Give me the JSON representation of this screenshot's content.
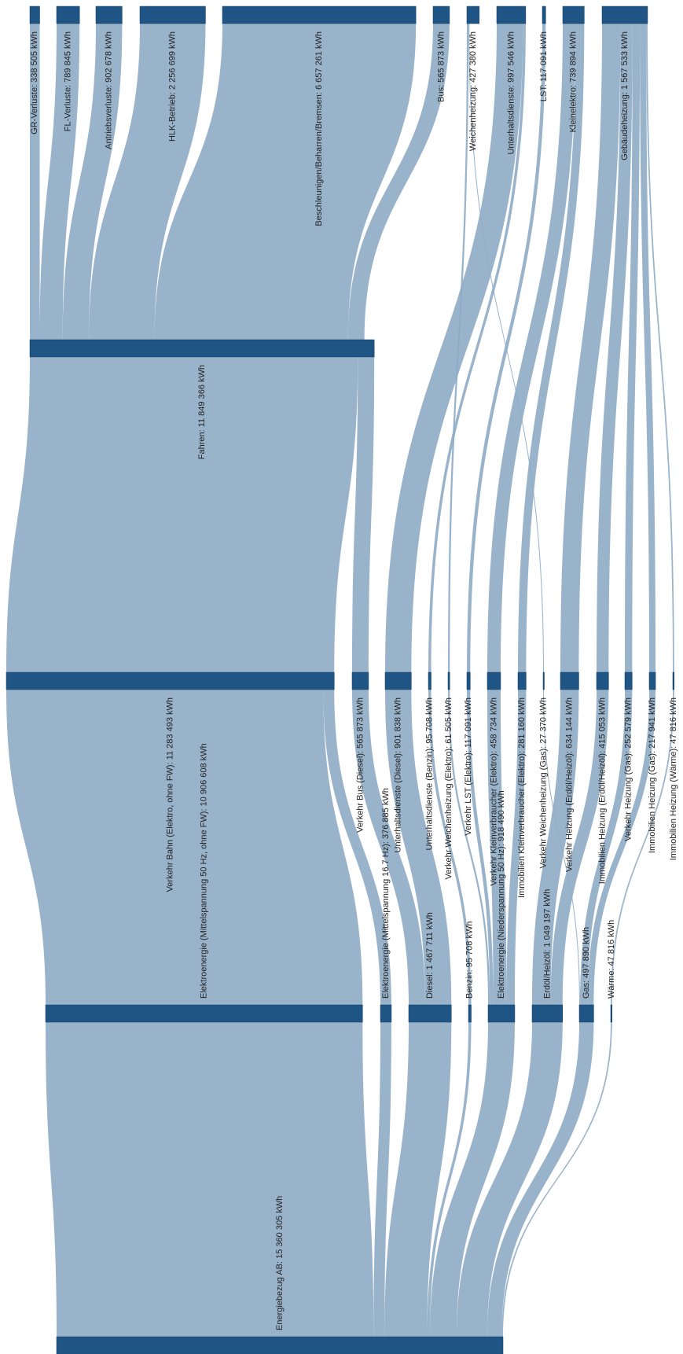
{
  "chart_data": {
    "type": "sankey",
    "nodes": [
      {
        "label": "Energiebezug AB: 15 360 305 kWh",
        "value": 15360305
      },
      {
        "label": "Elektroenergie (Mittelspannung 50 Hz, ohne FW): 10 906 608 kWh",
        "value": 10906608
      },
      {
        "label": "Elektroenergie (Mittelspannung 16.7 Hz): 376 885 kWh",
        "value": 376885
      },
      {
        "label": "Diesel: 1 467 711 kWh",
        "value": 1467711
      },
      {
        "label": "Benzin: 95 708 kWh",
        "value": 95708
      },
      {
        "label": "Elektroenergie (Niederspannung 50 Hz): 918 490 kWh",
        "value": 918490
      },
      {
        "label": "Erdöl/Heizöl: 1 049 197 kWh",
        "value": 1049197
      },
      {
        "label": "Gas: 497 890 kWh",
        "value": 497890
      },
      {
        "label": "Wärme: 47 816 kWh",
        "value": 47816
      },
      {
        "label": "Verkehr Bahn (Elektro, ohne FW): 11 283 493 kWh",
        "value": 11283493
      },
      {
        "label": "Verkehr Bus (Diesel): 565 873 kWh",
        "value": 565873
      },
      {
        "label": "Unterhaltsdienste (Diesel): 901 838 kWh",
        "value": 901838
      },
      {
        "label": "Unterhaltsdienste (Benzin): 95 708 kWh",
        "value": 95708
      },
      {
        "label": "Verkehr Weichenheizung (Elektro): 61 505 kWh",
        "value": 61505
      },
      {
        "label": "Verkehr LST (Elektro): 117 091 kWh",
        "value": 117091
      },
      {
        "label": "Verkehr Kleinverbraucher (Elektro): 458 734 kWh",
        "value": 458734
      },
      {
        "label": "Immobilien Kleinverbraucher (Elektro): 281 160 kWh",
        "value": 281160
      },
      {
        "label": "Verkehr Weichenheizung (Gas): 27 370 kWh",
        "value": 27370
      },
      {
        "label": "Verkehr Heizung (Erdöl/Heizöl): 634 144 kWh",
        "value": 634144
      },
      {
        "label": "Immobilien Heizung (Erdöl/Heizöl): 415 053 kWh",
        "value": 415053
      },
      {
        "label": "Verkehr Heizung (Gas): 252 579 kWh",
        "value": 252579
      },
      {
        "label": "Immobilien Heizung (Gas): 217 941 kWh",
        "value": 217941
      },
      {
        "label": "Immobilien Heizung (Wärme): 47 816 kWh",
        "value": 47816
      },
      {
        "label": "Fahren: 11 849 366 kWh",
        "value": 11849366
      },
      {
        "label": "GR-Verluste: 338 505 kWh",
        "value": 338505
      },
      {
        "label": "FL-Verluste: 789 845 kWh",
        "value": 789845
      },
      {
        "label": "Antriebsverluste: 902 678 kWh",
        "value": 902678
      },
      {
        "label": "HLK-Betrieb: 2 256 699 kWh",
        "value": 2256699
      },
      {
        "label": "Beschleunigen/Beharren/Bremsen: 6 657 261 kWh",
        "value": 6657261
      },
      {
        "label": "Bus: 565 873 kWh",
        "value": 565873
      },
      {
        "label": "Weichenheizung: 427 380 kWh",
        "value": 427380
      },
      {
        "label": "Unterhaltsdienste: 997 546 kWh",
        "value": 997546
      },
      {
        "label": "LST: 117 091 kWh",
        "value": 117091
      },
      {
        "label": "Kleinelektro: 739 894 kWh",
        "value": 739894
      },
      {
        "label": "Gebäudeheizung: 1 567 533 kWh",
        "value": 1567533
      }
    ],
    "links": [
      {
        "source": 0,
        "target": 1,
        "value": 10906608
      },
      {
        "source": 0,
        "target": 2,
        "value": 376885
      },
      {
        "source": 0,
        "target": 3,
        "value": 1467711
      },
      {
        "source": 0,
        "target": 4,
        "value": 95708
      },
      {
        "source": 0,
        "target": 5,
        "value": 918490
      },
      {
        "source": 0,
        "target": 6,
        "value": 1049197
      },
      {
        "source": 0,
        "target": 7,
        "value": 497890
      },
      {
        "source": 0,
        "target": 8,
        "value": 47816
      },
      {
        "source": 1,
        "target": 9,
        "value": 10906608
      },
      {
        "source": 2,
        "target": 9,
        "value": 376885
      },
      {
        "source": 3,
        "target": 10,
        "value": 565873
      },
      {
        "source": 3,
        "target": 11,
        "value": 901838
      },
      {
        "source": 4,
        "target": 12,
        "value": 95708
      },
      {
        "source": 5,
        "target": 13,
        "value": 61505
      },
      {
        "source": 5,
        "target": 14,
        "value": 117091
      },
      {
        "source": 5,
        "target": 15,
        "value": 458734
      },
      {
        "source": 5,
        "target": 16,
        "value": 281160
      },
      {
        "source": 7,
        "target": 17,
        "value": 27370
      },
      {
        "source": 6,
        "target": 18,
        "value": 634144
      },
      {
        "source": 6,
        "target": 19,
        "value": 415053
      },
      {
        "source": 7,
        "target": 20,
        "value": 252579
      },
      {
        "source": 7,
        "target": 21,
        "value": 217941
      },
      {
        "source": 8,
        "target": 22,
        "value": 47816
      },
      {
        "source": 9,
        "target": 23,
        "value": 11283493
      },
      {
        "source": 10,
        "target": 23,
        "value": 565873
      },
      {
        "source": 23,
        "target": 24,
        "value": 338505
      },
      {
        "source": 23,
        "target": 25,
        "value": 789845
      },
      {
        "source": 23,
        "target": 26,
        "value": 902678
      },
      {
        "source": 23,
        "target": 27,
        "value": 2256699
      },
      {
        "source": 23,
        "target": 28,
        "value": 6657261
      },
      {
        "source": 23,
        "target": 29,
        "value": 565873
      },
      {
        "source": 11,
        "target": 31,
        "value": 901838
      },
      {
        "source": 12,
        "target": 31,
        "value": 95708
      },
      {
        "source": 13,
        "target": 30,
        "value": 61505
      },
      {
        "source": 17,
        "target": 30,
        "value": 27370
      },
      {
        "source": 14,
        "target": 32,
        "value": 117091
      },
      {
        "source": 15,
        "target": 33,
        "value": 458734
      },
      {
        "source": 16,
        "target": 33,
        "value": 281160
      },
      {
        "source": 18,
        "target": 34,
        "value": 634144
      },
      {
        "source": 19,
        "target": 34,
        "value": 415053
      },
      {
        "source": 20,
        "target": 34,
        "value": 252579
      },
      {
        "source": 21,
        "target": 34,
        "value": 217941
      },
      {
        "source": 22,
        "target": 34,
        "value": 47816
      }
    ]
  }
}
